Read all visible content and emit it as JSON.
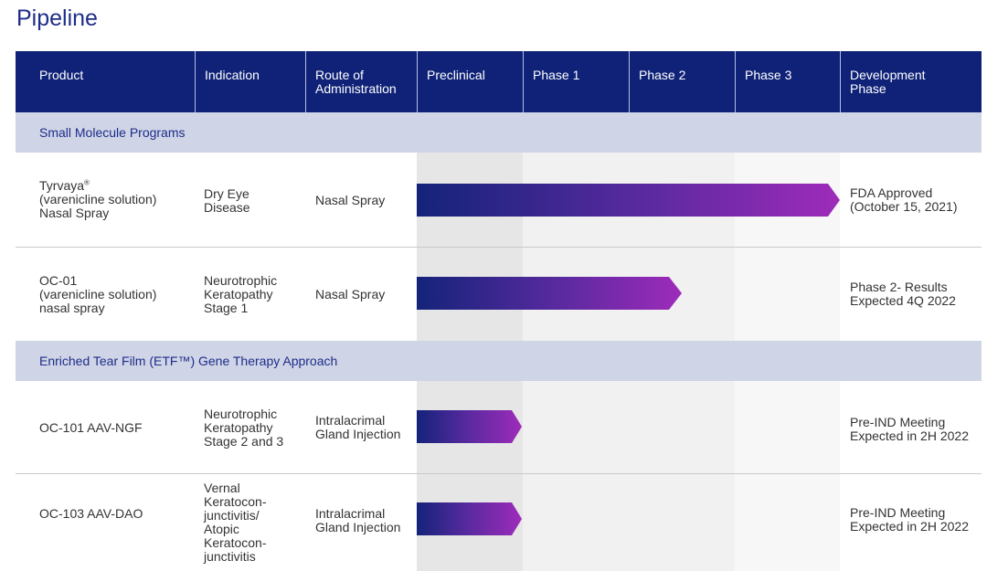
{
  "title": "Pipeline",
  "headers": {
    "product": "Product",
    "indication": "Indication",
    "route": "Route of\nAdministration",
    "preclinical": "Preclinical",
    "phase1": "Phase 1",
    "phase2": "Phase 2",
    "phase3": "Phase 3",
    "development": "Development\nPhase"
  },
  "sections": {
    "small_molecule": "Small Molecule Programs",
    "etf": "Enriched Tear Film (ETF™) Gene Therapy Approach"
  },
  "rows": [
    {
      "product_name": "Tyrvaya",
      "product_mark": "®",
      "product_rest": "(varenicline solution)\nNasal Spray",
      "indication": "Dry Eye\nDisease",
      "route": "Nasal Spray",
      "progress": "Phase 3",
      "status": "FDA Approved\n(October 15, 2021)"
    },
    {
      "product": "OC-01\n(varenicline solution)\nnasal spray",
      "indication": "Neurotrophic\nKeratopathy\nStage 1",
      "route": "Nasal Spray",
      "progress": "Phase 2",
      "status": "Phase 2- Results\nExpected 4Q 2022"
    },
    {
      "product": "OC-101 AAV-NGF",
      "indication": "Neurotrophic\nKeratopathy\nStage 2 and 3",
      "route": "Intralacrimal\nGland Injection",
      "progress": "Preclinical",
      "status": "Pre-IND Meeting\nExpected in 2H 2022"
    },
    {
      "product": "OC-103 AAV-DAO",
      "indication": "Vernal\nKeratocon-\njunctivitis/\nAtopic\nKeratocon-\njunctivitis",
      "route": "Intralacrimal\nGland Injection",
      "progress": "Preclinical",
      "status": "Pre-IND Meeting\nExpected in 2H 2022"
    }
  ]
}
